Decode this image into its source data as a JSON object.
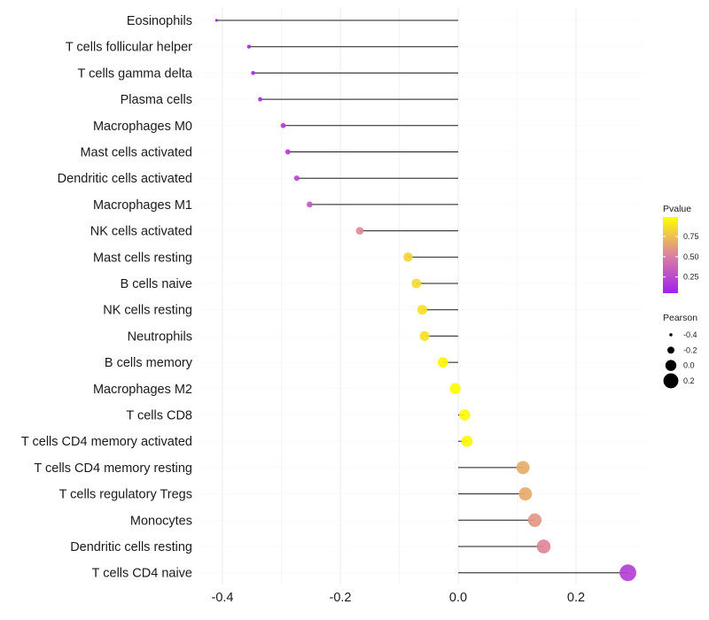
{
  "chart_data": {
    "type": "lollipop",
    "title": "",
    "xlabel": "",
    "ylabel": "",
    "xlim": [
      -0.45,
      0.3
    ],
    "x_ticks": [
      -0.4,
      -0.2,
      0.0,
      0.2
    ],
    "x_tick_labels": [
      "-0.4",
      "-0.2",
      "0.0",
      "0.2"
    ],
    "grid": true,
    "categories": [
      "Eosinophils",
      "T cells follicular helper",
      "T cells gamma delta",
      "Plasma cells",
      "Macrophages M0",
      "Mast cells activated",
      "Dendritic cells activated",
      "Macrophages M1",
      "NK cells activated",
      "Mast cells resting",
      "B cells naive",
      "NK cells resting",
      "Neutrophils",
      "B cells memory",
      "Macrophages M2",
      "T cells CD8",
      "T cells CD4 memory activated",
      "T cells CD4 memory resting",
      "T cells regulatory  Tregs ",
      "Monocytes",
      "Dendritic cells resting",
      "T cells CD4 naive"
    ],
    "pearson": [
      -0.41,
      -0.355,
      -0.348,
      -0.336,
      -0.297,
      -0.289,
      -0.274,
      -0.252,
      -0.167,
      -0.085,
      -0.071,
      -0.061,
      -0.057,
      -0.026,
      -0.005,
      0.011,
      0.015,
      0.11,
      0.114,
      0.13,
      0.145,
      0.288
    ],
    "pvalue": [
      0.05,
      0.1,
      0.1,
      0.12,
      0.18,
      0.2,
      0.24,
      0.32,
      0.55,
      0.82,
      0.85,
      0.87,
      0.87,
      0.95,
      0.99,
      0.97,
      0.96,
      0.68,
      0.67,
      0.6,
      0.54,
      0.2
    ],
    "legend_color": {
      "title": "Pvalue",
      "ticks": [
        0.25,
        0.5,
        0.75
      ],
      "tick_labels": [
        "0.25",
        "0.50",
        "0.75"
      ],
      "range": [
        0.05,
        0.99
      ],
      "low_color": "#a020f0",
      "mid_color": "#dc82a0",
      "high_color": "#ffff00"
    },
    "legend_size": {
      "title": "Pearson",
      "values": [
        -0.4,
        -0.2,
        0.0,
        0.2
      ],
      "labels": [
        "-0.4",
        "-0.2",
        "0.0",
        "0.2"
      ]
    },
    "legend_placement": "right"
  }
}
